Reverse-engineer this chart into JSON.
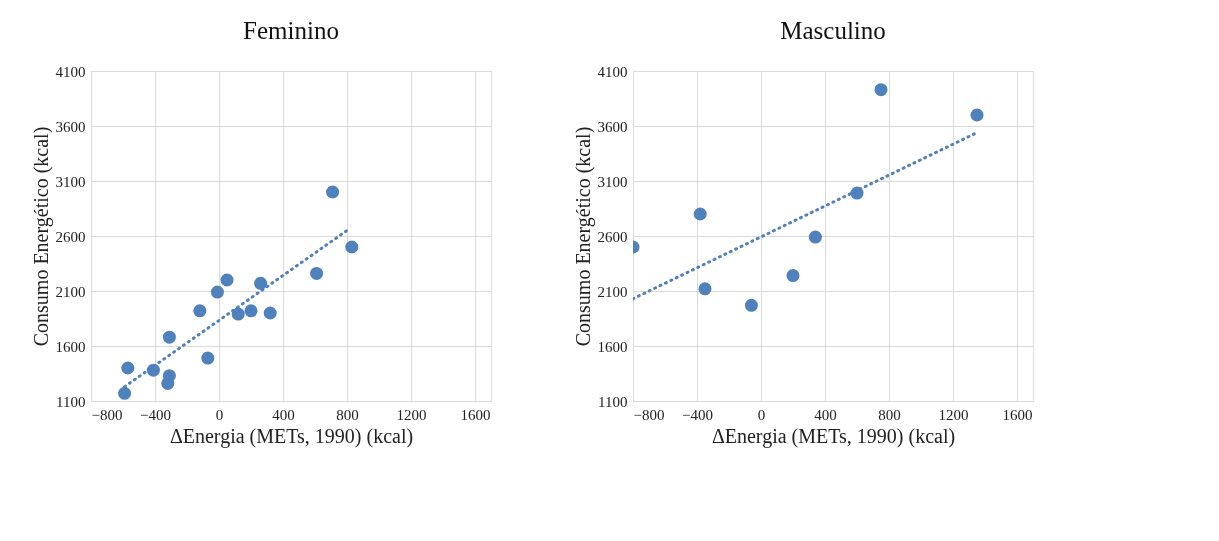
{
  "chart_data": [
    {
      "type": "scatter",
      "title": "Feminino",
      "xlabel": "ΔEnergia (METs, 1990) (kcal)",
      "ylabel": "Consumo Energético (kcal)",
      "xlim": [
        -800,
        1700
      ],
      "xticks": [
        -800,
        -400,
        0,
        400,
        800,
        1200,
        1600
      ],
      "ylim": [
        1100,
        4100
      ],
      "yticks": [
        1100,
        1600,
        2100,
        2600,
        3100,
        3600,
        4100
      ],
      "grid": true,
      "marker": "circle",
      "series": [
        {
          "color": "#4f81bd",
          "x": [
            -590,
            -570,
            -410,
            -310,
            -320,
            -310,
            -120,
            -70,
            -10,
            50,
            120,
            200,
            260,
            320,
            610,
            710,
            830
          ],
          "values": [
            1170,
            1400,
            1380,
            1330,
            1260,
            1680,
            1920,
            1490,
            2090,
            2200,
            1890,
            1920,
            2170,
            1900,
            2260,
            3000,
            2500
          ]
        },
        {
          "type": "line",
          "line_style": "dotted",
          "marker": "none",
          "color": "#4f81bd",
          "x": [
            -590,
            800
          ],
          "values": [
            1230,
            2650
          ]
        }
      ]
    },
    {
      "type": "scatter",
      "title": "Masculino",
      "xlabel": "ΔEnergia (METs, 1990) (kcal)",
      "ylabel": "Consumo Energético (kcal)",
      "xlim": [
        -800,
        1700
      ],
      "xticks": [
        -800,
        -400,
        0,
        400,
        800,
        1200,
        1600
      ],
      "ylim": [
        1100,
        4100
      ],
      "yticks": [
        1100,
        1600,
        2100,
        2600,
        3100,
        3600,
        4100
      ],
      "grid": true,
      "marker": "circle",
      "series": [
        {
          "color": "#4f81bd",
          "x": [
            -800,
            -380,
            -350,
            -60,
            200,
            340,
            600,
            750,
            1350
          ],
          "values": [
            2500,
            2800,
            2120,
            1970,
            2240,
            2590,
            2990,
            3930,
            3700
          ]
        },
        {
          "type": "line",
          "line_style": "dotted",
          "marker": "none",
          "color": "#4f81bd",
          "x": [
            -800,
            1350
          ],
          "values": [
            2030,
            3540
          ]
        }
      ]
    }
  ]
}
